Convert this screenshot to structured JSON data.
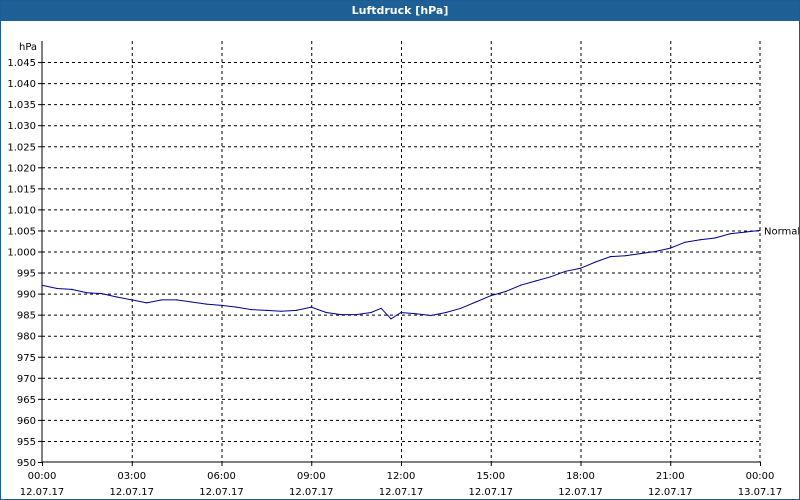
{
  "window": {
    "title": "Luftdruck [hPa]"
  },
  "colors": {
    "titlebar": "#1e5f96",
    "series": "#00008b",
    "grid": "#000000",
    "background": "#ffffff"
  },
  "chart_data": {
    "type": "line",
    "title": "Luftdruck [hPa]",
    "ylabel": "hPa",
    "xlabel": "",
    "ylim": [
      950,
      1050
    ],
    "xlim": [
      "12.07.17 00:00",
      "13.07.17 00:00"
    ],
    "grid": true,
    "y_ticks": [
      "950",
      "955",
      "960",
      "965",
      "970",
      "975",
      "980",
      "985",
      "990",
      "995",
      "1.000",
      "1.005",
      "1.010",
      "1.015",
      "1.020",
      "1.025",
      "1.030",
      "1.035",
      "1.040",
      "1.045"
    ],
    "x_ticks": [
      {
        "time": "00:00",
        "date": "12.07.17"
      },
      {
        "time": "03:00",
        "date": "12.07.17"
      },
      {
        "time": "06:00",
        "date": "12.07.17"
      },
      {
        "time": "09:00",
        "date": "12.07.17"
      },
      {
        "time": "12:00",
        "date": "12.07.17"
      },
      {
        "time": "15:00",
        "date": "12.07.17"
      },
      {
        "time": "18:00",
        "date": "12.07.17"
      },
      {
        "time": "21:00",
        "date": "12.07.17"
      },
      {
        "time": "00:00",
        "date": "13.07.17"
      }
    ],
    "series": [
      {
        "name": "Normal",
        "x": [
          "12.07.17 00:00",
          "12.07.17 00:30",
          "12.07.17 01:00",
          "12.07.17 01:30",
          "12.07.17 02:00",
          "12.07.17 02:30",
          "12.07.17 03:00",
          "12.07.17 03:30",
          "12.07.17 04:00",
          "12.07.17 04:30",
          "12.07.17 05:00",
          "12.07.17 05:30",
          "12.07.17 06:00",
          "12.07.17 06:30",
          "12.07.17 07:00",
          "12.07.17 07:30",
          "12.07.17 08:00",
          "12.07.17 08:30",
          "12.07.17 09:00",
          "12.07.17 09:30",
          "12.07.17 10:00",
          "12.07.17 10:30",
          "12.07.17 11:00",
          "12.07.17 11:20",
          "12.07.17 11:40",
          "12.07.17 12:00",
          "12.07.17 12:30",
          "12.07.17 13:00",
          "12.07.17 13:30",
          "12.07.17 14:00",
          "12.07.17 14:30",
          "12.07.17 15:00",
          "12.07.17 15:30",
          "12.07.17 16:00",
          "12.07.17 16:30",
          "12.07.17 17:00",
          "12.07.17 17:30",
          "12.07.17 18:00",
          "12.07.17 18:30",
          "12.07.17 19:00",
          "12.07.17 19:30",
          "12.07.17 20:00",
          "12.07.17 20:30",
          "12.07.17 21:00",
          "12.07.17 21:30",
          "12.07.17 22:00",
          "12.07.17 22:30",
          "12.07.17 23:00",
          "12.07.17 23:30",
          "13.07.17 00:00"
        ],
        "values": [
          992,
          991.2,
          991,
          990.2,
          990,
          989.2,
          988.5,
          987.8,
          988.5,
          988.5,
          988,
          987.5,
          987.2,
          986.8,
          986.2,
          986,
          985.8,
          986,
          986.8,
          985.5,
          985,
          985,
          985.5,
          986.5,
          984,
          985.5,
          985.2,
          984.8,
          985.5,
          986.5,
          988,
          989.5,
          990.5,
          992,
          993,
          994,
          995.3,
          996,
          997.5,
          998.8,
          999,
          999.5,
          1000,
          1000.8,
          1002.2,
          1002.8,
          1003.2,
          1004.2,
          1004.6,
          1005
        ]
      }
    ]
  }
}
